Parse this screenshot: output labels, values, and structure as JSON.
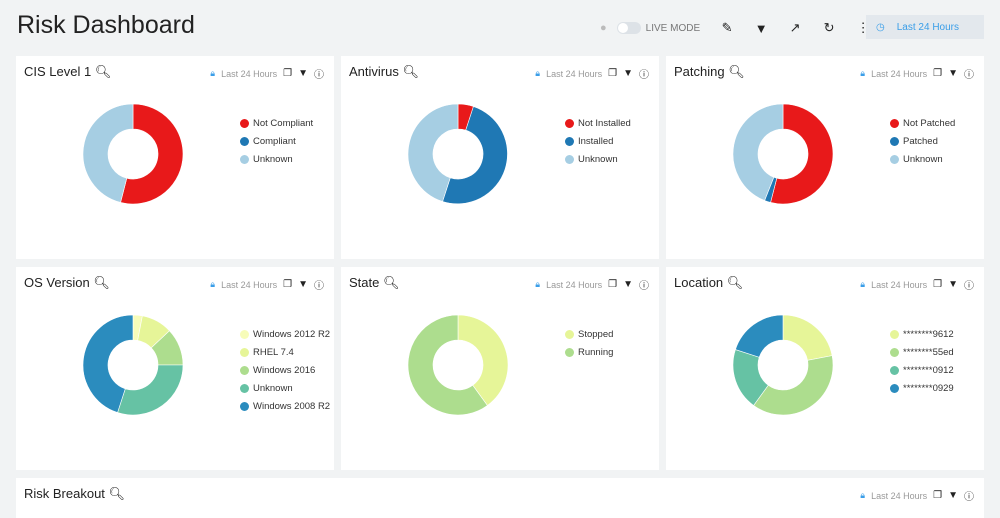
{
  "header": {
    "title": "Risk Dashboard",
    "live_mode": "LIVE MODE",
    "time_range": "Last 24 Hours"
  },
  "panel_meta": "Last 24 Hours",
  "panels": [
    {
      "title": "CIS Level 1",
      "slices": [
        {
          "label": "Not Compliant",
          "value": 54,
          "color": "#e8191a"
        },
        {
          "label": "Compliant",
          "value": 0,
          "color": "#1f78b4"
        },
        {
          "label": "Unknown",
          "value": 46,
          "color": "#a6cee3"
        }
      ]
    },
    {
      "title": "Antivirus",
      "slices": [
        {
          "label": "Not Installed",
          "value": 5,
          "color": "#e8191a"
        },
        {
          "label": "Installed",
          "value": 50,
          "color": "#1f78b4"
        },
        {
          "label": "Unknown",
          "value": 45,
          "color": "#a6cee3"
        }
      ]
    },
    {
      "title": "Patching",
      "slices": [
        {
          "label": "Not Patched",
          "value": 54,
          "color": "#e8191a"
        },
        {
          "label": "Patched",
          "value": 2,
          "color": "#1f78b4"
        },
        {
          "label": "Unknown",
          "value": 44,
          "color": "#a6cee3"
        }
      ]
    },
    {
      "title": "OS Version",
      "slices": [
        {
          "label": "Windows 2012 R2",
          "value": 3,
          "color": "#f7fcb9"
        },
        {
          "label": "RHEL 7.4",
          "value": 10,
          "color": "#e6f598"
        },
        {
          "label": "Windows 2016",
          "value": 12,
          "color": "#addd8e"
        },
        {
          "label": "Unknown",
          "value": 30,
          "color": "#66c2a4"
        },
        {
          "label": "Windows 2008 R2",
          "value": 45,
          "color": "#2b8cbe"
        }
      ]
    },
    {
      "title": "State",
      "slices": [
        {
          "label": "Stopped",
          "value": 40,
          "color": "#e6f598"
        },
        {
          "label": "Running",
          "value": 60,
          "color": "#addd8e"
        }
      ]
    },
    {
      "title": "Location",
      "slices": [
        {
          "label": "********9612",
          "value": 22,
          "color": "#e6f598"
        },
        {
          "label": "********55ed",
          "value": 38,
          "color": "#addd8e"
        },
        {
          "label": "********0912",
          "value": 20,
          "color": "#66c2a4"
        },
        {
          "label": "********0929",
          "value": 20,
          "color": "#2b8cbe"
        }
      ]
    }
  ],
  "bottom_panel": {
    "title": "Risk Breakout"
  }
}
